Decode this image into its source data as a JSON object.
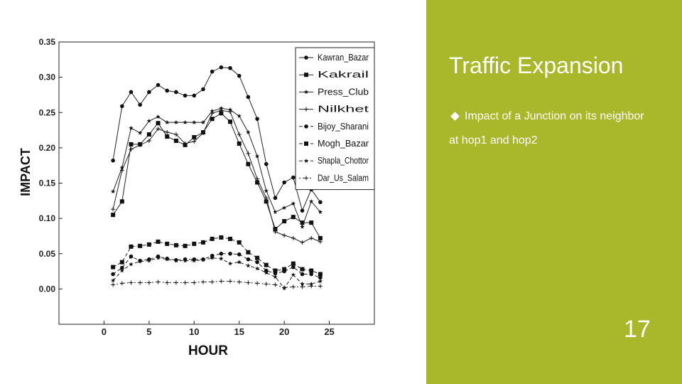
{
  "slide": {
    "title": "Traffic Expansion",
    "bullet_line1": "Impact of a Junction on its neighbor",
    "bullet_line2": "at hop1 and hop2",
    "page_number": "17",
    "panel_color": "#a8b82a"
  },
  "chart_data": {
    "type": "line",
    "title": "",
    "xlabel": "HOUR",
    "ylabel": "IMPACT",
    "xlim": [
      -5,
      30
    ],
    "ylim": [
      -0.05,
      0.35
    ],
    "xticks": [
      0,
      5,
      10,
      15,
      20,
      25
    ],
    "yticks": [
      0.0,
      0.05,
      0.1,
      0.15,
      0.2,
      0.25,
      0.3,
      0.35
    ],
    "ytick_labels": [
      "0.00",
      "0.05",
      "0.10",
      "0.15",
      "0.20",
      "0.25",
      "0.30",
      "0.35"
    ],
    "legend_position": "top-right",
    "x": [
      1,
      2,
      3,
      4,
      5,
      6,
      7,
      8,
      9,
      10,
      11,
      12,
      13,
      14,
      15,
      16,
      17,
      18,
      19,
      20,
      21,
      22,
      23,
      24
    ],
    "series": [
      {
        "name": "Kawran_Bazar",
        "marker": "circle",
        "dash": "",
        "values": [
          0.182,
          0.259,
          0.279,
          0.261,
          0.279,
          0.289,
          0.281,
          0.279,
          0.274,
          0.274,
          0.283,
          0.308,
          0.314,
          0.313,
          0.302,
          0.272,
          0.241,
          0.177,
          0.129,
          0.151,
          0.158,
          0.111,
          0.141,
          0.123
        ]
      },
      {
        "name": "Kakrail",
        "marker": "square",
        "dash": "",
        "values": [
          0.105,
          0.124,
          0.205,
          0.205,
          0.219,
          0.235,
          0.216,
          0.21,
          0.204,
          0.215,
          0.222,
          0.241,
          0.249,
          0.237,
          0.206,
          0.177,
          0.151,
          0.124,
          0.085,
          0.096,
          0.102,
          0.094,
          0.094,
          0.072
        ]
      },
      {
        "name": "Press_Club",
        "marker": "star",
        "dash": "",
        "values": [
          0.138,
          0.172,
          0.228,
          0.221,
          0.238,
          0.244,
          0.236,
          0.236,
          0.236,
          0.236,
          0.236,
          0.252,
          0.256,
          0.254,
          0.245,
          0.222,
          0.188,
          0.139,
          0.109,
          0.115,
          0.121,
          0.088,
          0.124,
          0.109
        ]
      },
      {
        "name": "Nilkhet",
        "marker": "plus",
        "dash": "",
        "values": [
          0.113,
          0.168,
          0.198,
          0.204,
          0.21,
          0.227,
          0.222,
          0.219,
          0.206,
          0.209,
          0.221,
          0.249,
          0.253,
          0.251,
          0.219,
          0.192,
          0.156,
          0.129,
          0.081,
          0.076,
          0.072,
          0.066,
          0.072,
          0.067
        ]
      },
      {
        "name": "Bijoy_Sharani",
        "marker": "circle",
        "dash": "5,3",
        "values": [
          0.021,
          0.03,
          0.046,
          0.04,
          0.042,
          0.046,
          0.043,
          0.041,
          0.042,
          0.042,
          0.042,
          0.047,
          0.05,
          0.05,
          0.049,
          0.042,
          0.038,
          0.026,
          0.022,
          0.025,
          0.031,
          0.021,
          0.021,
          0.016
        ]
      },
      {
        "name": "Mogh_Bazar",
        "marker": "square",
        "dash": "5,3",
        "values": [
          0.031,
          0.038,
          0.06,
          0.061,
          0.063,
          0.067,
          0.064,
          0.062,
          0.061,
          0.064,
          0.066,
          0.071,
          0.073,
          0.071,
          0.066,
          0.052,
          0.044,
          0.034,
          0.026,
          0.028,
          0.036,
          0.028,
          0.026,
          0.021
        ]
      },
      {
        "name": "Shapla_Chottor",
        "marker": "star",
        "dash": "5,3",
        "values": [
          0.012,
          0.026,
          0.035,
          0.039,
          0.04,
          0.044,
          0.042,
          0.04,
          0.04,
          0.04,
          0.041,
          0.044,
          0.043,
          0.036,
          0.038,
          0.033,
          0.029,
          0.023,
          0.017,
          0.001,
          0.02,
          0.007,
          0.007,
          0.011
        ]
      },
      {
        "name": "Dar_Us_Salam",
        "marker": "plus",
        "dash": "2,3",
        "values": [
          0.006,
          0.008,
          0.009,
          0.009,
          0.009,
          0.01,
          0.009,
          0.009,
          0.009,
          0.009,
          0.01,
          0.01,
          0.011,
          0.011,
          0.01,
          0.009,
          0.008,
          0.007,
          0.006,
          0.002,
          0.003,
          0.003,
          0.004,
          0.004
        ]
      }
    ]
  }
}
